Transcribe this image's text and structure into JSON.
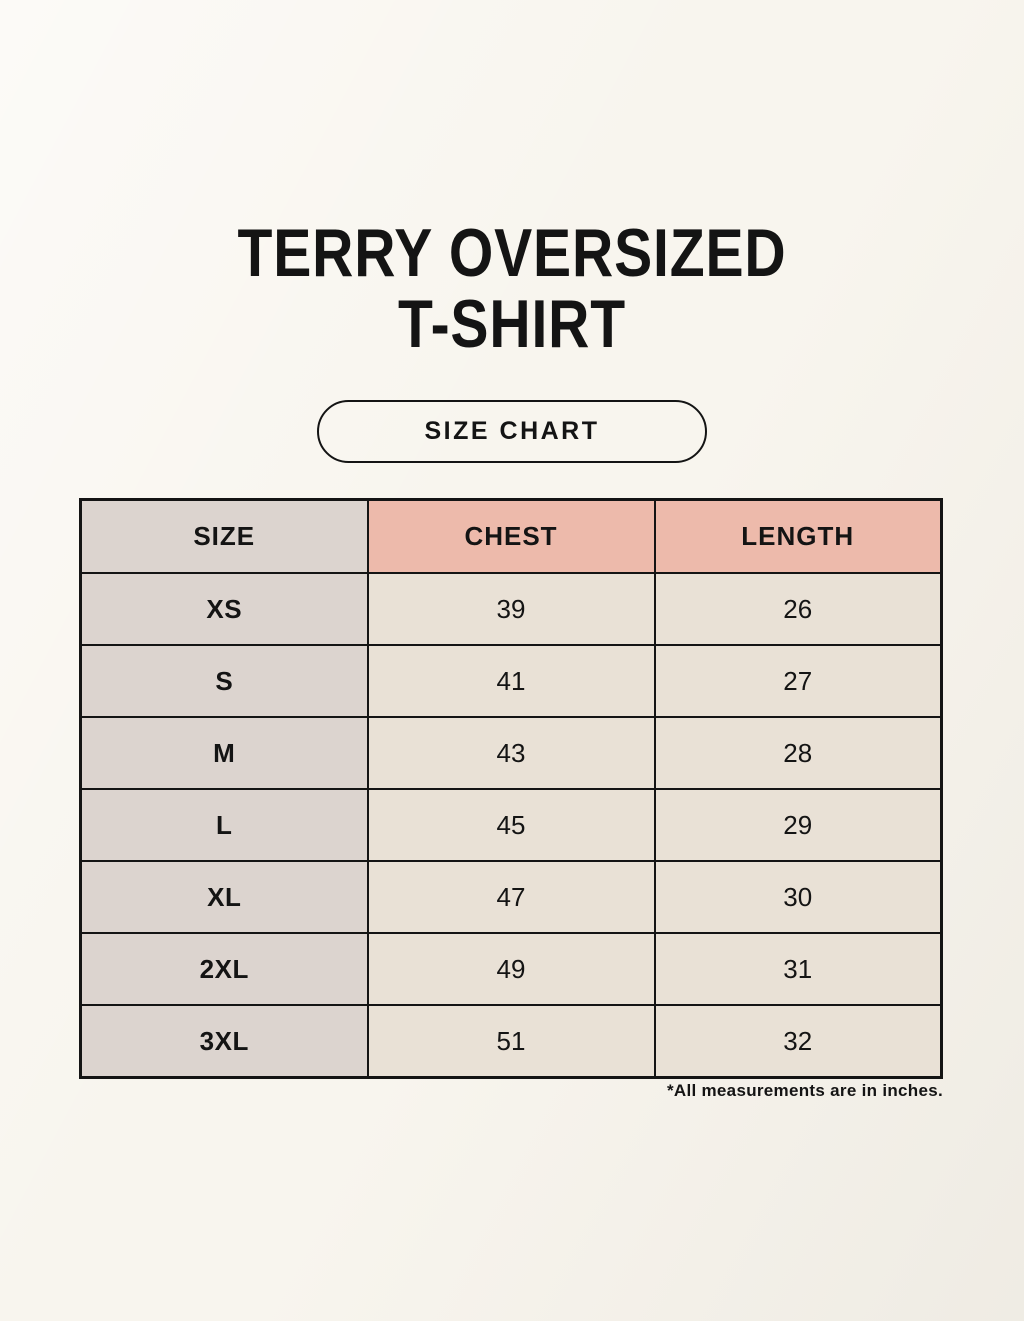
{
  "page": {
    "title_line1": "TERRY OVERSIZED",
    "title_line2": "T-SHIRT",
    "badge_label": "SIZE CHART",
    "footnote": "*All measurements are in inches."
  },
  "colors": {
    "page_background": "#f8f5ee",
    "accent_salmon": "#edbaab",
    "size_column_gray": "#dcd4cf",
    "cell_cream": "#e9e1d6",
    "border_black": "#141414",
    "text": "#141414"
  },
  "chart_data": {
    "type": "table",
    "title": "TERRY OVERSIZED T-SHIRT",
    "columns": [
      "SIZE",
      "CHEST",
      "LENGTH"
    ],
    "rows": [
      {
        "size": "XS",
        "chest": "39",
        "length": "26"
      },
      {
        "size": "S",
        "chest": "41",
        "length": "27"
      },
      {
        "size": "M",
        "chest": "43",
        "length": "28"
      },
      {
        "size": "L",
        "chest": "45",
        "length": "29"
      },
      {
        "size": "XL",
        "chest": "47",
        "length": "30"
      },
      {
        "size": "2XL",
        "chest": "49",
        "length": "31"
      },
      {
        "size": "3XL",
        "chest": "51",
        "length": "32"
      }
    ],
    "units_note": "*All measurements are in inches.",
    "layout": "header row with accent color on CHEST and LENGTH; SIZE column shaded gray"
  }
}
